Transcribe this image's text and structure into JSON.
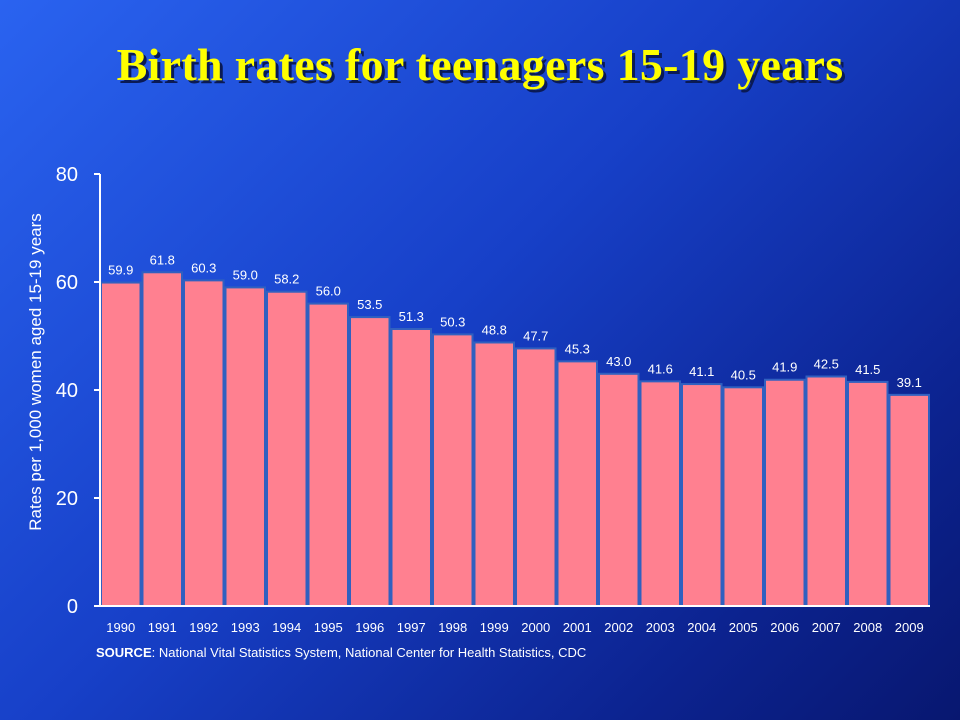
{
  "title": "Birth rates for teenagers 15-19 years",
  "source": {
    "label": "SOURCE",
    "text": ": National Vital Statistics System, National Center for Health Statistics, CDC"
  },
  "colors": {
    "bar": "#ff8090",
    "bar_edge": "#3060c0",
    "axis": "#ffffff",
    "text": "#ffffff",
    "title": "#ffff00"
  },
  "chart_data": {
    "type": "bar",
    "title": "Birth rates for teenagers 15-19 years",
    "xlabel": "",
    "ylabel": "Rates per 1,000 women aged 15-19 years",
    "ylim": [
      0,
      80
    ],
    "yticks": [
      0,
      20,
      40,
      60,
      80
    ],
    "grid": false,
    "categories": [
      "1990",
      "1991",
      "1992",
      "1993",
      "1994",
      "1995",
      "1996",
      "1997",
      "1998",
      "1999",
      "2000",
      "2001",
      "2002",
      "2003",
      "2004",
      "2005",
      "2006",
      "2007",
      "2008",
      "2009"
    ],
    "values": [
      59.9,
      61.8,
      60.3,
      59.0,
      58.2,
      56.0,
      53.5,
      51.3,
      50.3,
      48.8,
      47.7,
      45.3,
      43.0,
      41.6,
      41.1,
      40.5,
      41.9,
      42.5,
      41.5,
      39.1
    ],
    "labels": [
      "59.9",
      "61.8",
      "60.3",
      "59.0",
      "58.2",
      "56.0",
      "53.5",
      "51.3",
      "50.3",
      "48.8",
      "47.7",
      "45.3",
      "43.0",
      "41.6",
      "41.1",
      "40.5",
      "41.9",
      "42.5",
      "41.5",
      "39.1"
    ]
  }
}
